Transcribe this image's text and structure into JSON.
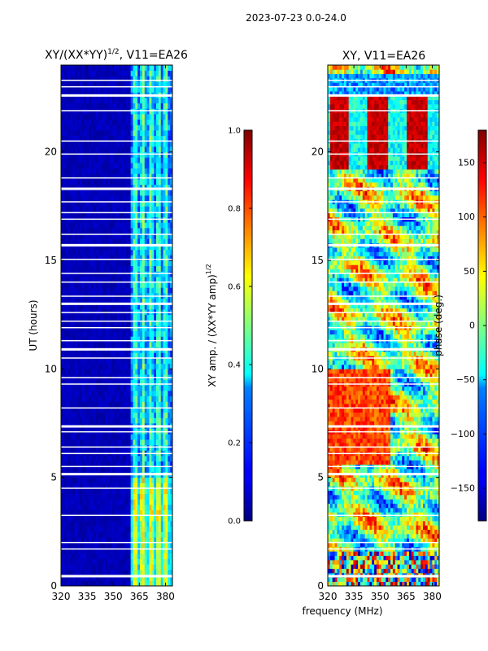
{
  "suptitle": "2023-07-23 0.0-24.0",
  "xlabel": "frequency (MHz)",
  "chart_data": [
    {
      "type": "heatmap",
      "title_prefix": "XY/(XX*YY)",
      "title_exponent": "1/2",
      "title_suffix": ", V11=EA26",
      "xlabel": "",
      "ylabel": "UT (hours)",
      "xlim": [
        320,
        384
      ],
      "ylim": [
        0,
        24
      ],
      "xticks": [
        320,
        335,
        350,
        365,
        380
      ],
      "yticks": [
        0,
        5,
        10,
        15,
        20
      ],
      "colormap": "jet",
      "colorbar": {
        "label_prefix": "XY amp. / (XX*YY amp)",
        "label_exponent": "1/2",
        "range": [
          0.0,
          1.0
        ],
        "ticks": [
          "0.0",
          "0.2",
          "0.4",
          "0.6",
          "0.8",
          "1.0"
        ]
      }
    },
    {
      "type": "heatmap",
      "title": "XY, V11=EA26",
      "xlabel": "",
      "ylabel": "",
      "xlim": [
        320,
        384
      ],
      "ylim": [
        0,
        24
      ],
      "xticks": [
        320,
        335,
        350,
        365,
        380
      ],
      "yticks": [
        0,
        5,
        10,
        15,
        20
      ],
      "colormap": "jet",
      "colorbar": {
        "label": "phase (deg.)",
        "range": [
          -180,
          180
        ],
        "ticks": [
          "−150",
          "−100",
          "−50",
          "0",
          "50",
          "100",
          "150"
        ]
      }
    }
  ]
}
